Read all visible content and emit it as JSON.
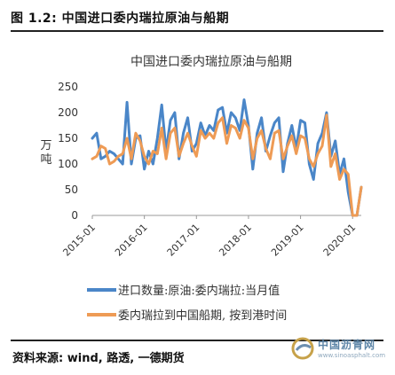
{
  "figure": {
    "caption": "图 1.2: 中国进口委内瑞拉原油与船期",
    "source": "资料来源: wind, 路透, 一德期货"
  },
  "watermark": {
    "name": "中国沥青网",
    "url": "www.sinoasphalt.com"
  },
  "chart_data": {
    "type": "line",
    "title": "中国进口委内瑞拉原油与船期",
    "ylabel": "万吨",
    "xlabel": "",
    "ylim": [
      0,
      250
    ],
    "yticks": [
      0,
      50,
      100,
      150,
      200,
      250
    ],
    "xticks": [
      "2015-01",
      "2016-01",
      "2017-01",
      "2018-01",
      "2019-01",
      "2020-01"
    ],
    "grid": false,
    "legend_position": "bottom",
    "x": [
      "2015-01",
      "2015-02",
      "2015-03",
      "2015-04",
      "2015-05",
      "2015-06",
      "2015-07",
      "2015-08",
      "2015-09",
      "2015-10",
      "2015-11",
      "2015-12",
      "2016-01",
      "2016-02",
      "2016-03",
      "2016-04",
      "2016-05",
      "2016-06",
      "2016-07",
      "2016-08",
      "2016-09",
      "2016-10",
      "2016-11",
      "2016-12",
      "2017-01",
      "2017-02",
      "2017-03",
      "2017-04",
      "2017-05",
      "2017-06",
      "2017-07",
      "2017-08",
      "2017-09",
      "2017-10",
      "2017-11",
      "2017-12",
      "2018-01",
      "2018-02",
      "2018-03",
      "2018-04",
      "2018-05",
      "2018-06",
      "2018-07",
      "2018-08",
      "2018-09",
      "2018-10",
      "2018-11",
      "2018-12",
      "2019-01",
      "2019-02",
      "2019-03",
      "2019-04",
      "2019-05",
      "2019-06",
      "2019-07",
      "2019-08",
      "2019-09",
      "2019-10",
      "2019-11",
      "2019-12",
      "2020-01",
      "2020-02",
      "2020-03"
    ],
    "series": [
      {
        "name": "进口数量:原油:委内瑞拉:当月值",
        "color": "#4a86c8",
        "values": [
          150,
          160,
          110,
          115,
          125,
          120,
          110,
          100,
          220,
          100,
          150,
          155,
          90,
          125,
          100,
          150,
          215,
          125,
          185,
          200,
          110,
          160,
          190,
          125,
          140,
          180,
          155,
          175,
          165,
          205,
          210,
          160,
          200,
          190,
          165,
          225,
          175,
          90,
          160,
          190,
          125,
          155,
          180,
          190,
          85,
          140,
          175,
          130,
          185,
          180,
          100,
          70,
          140,
          160,
          200,
          115,
          145,
          80,
          110,
          45,
          0,
          0,
          55
        ]
      },
      {
        "name": "委内瑞拉到中国船期, 按到港时间",
        "color": "#ee9b55",
        "values": [
          110,
          115,
          135,
          130,
          100,
          105,
          115,
          120,
          150,
          110,
          160,
          145,
          115,
          100,
          125,
          120,
          170,
          110,
          160,
          170,
          115,
          140,
          160,
          135,
          115,
          165,
          150,
          160,
          150,
          180,
          190,
          140,
          175,
          170,
          150,
          185,
          170,
          110,
          150,
          165,
          130,
          110,
          160,
          165,
          110,
          135,
          155,
          120,
          155,
          150,
          110,
          95,
          120,
          135,
          195,
          95,
          120,
          70,
          90,
          80,
          0,
          0,
          55
        ]
      }
    ]
  }
}
